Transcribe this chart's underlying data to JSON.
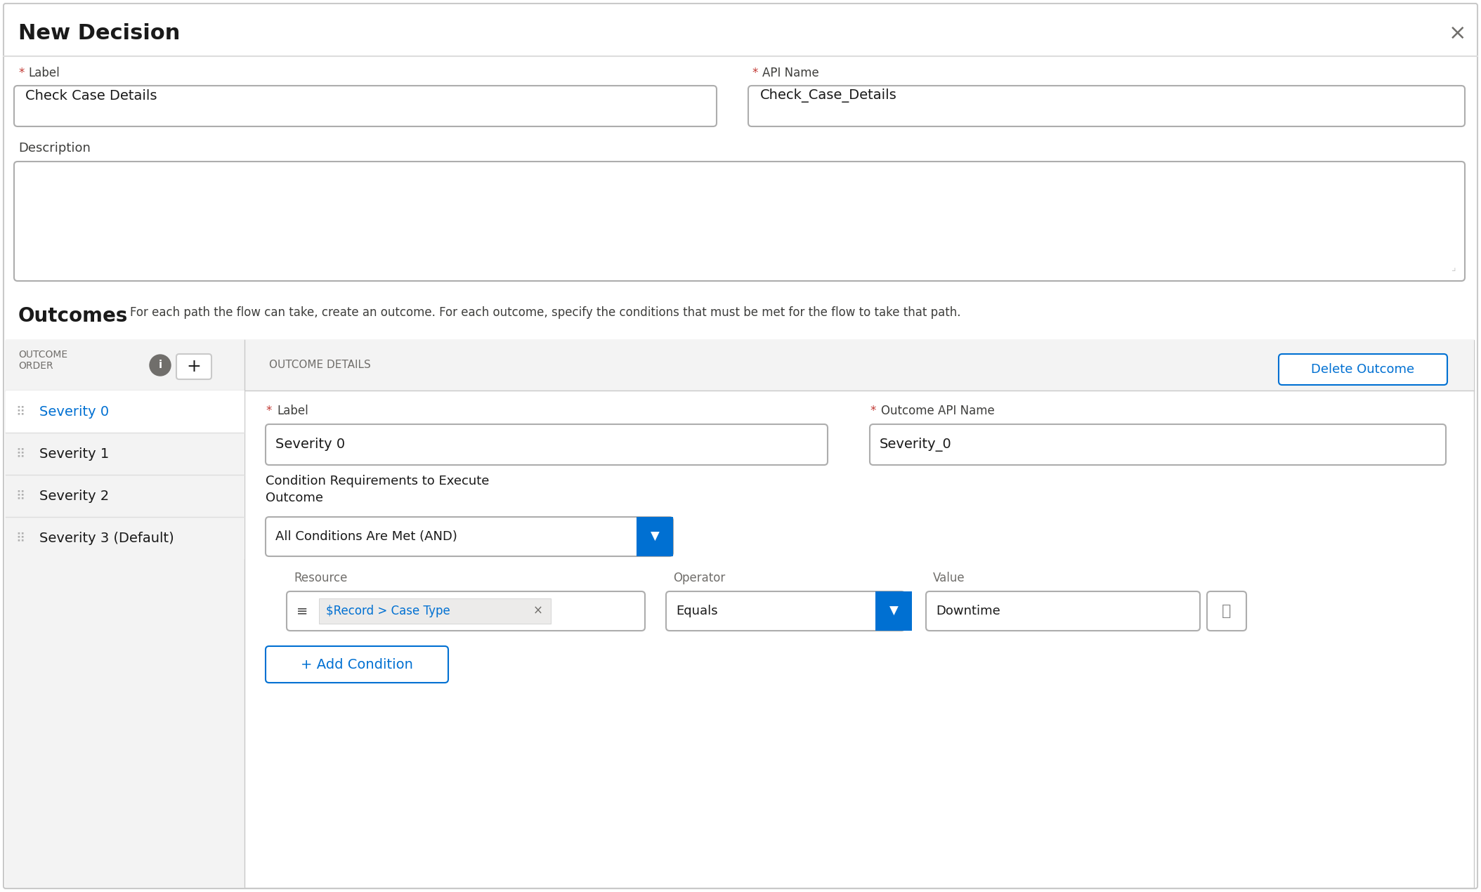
{
  "title": "New Decision",
  "close_symbol": "×",
  "label_field_label": "* Label",
  "label_field_value": "Check Case Details",
  "api_name_label": "* API Name",
  "api_name_value": "Check_Case_Details",
  "description_label": "Description",
  "outcomes_title": "Outcomes",
  "outcomes_description": "For each path the flow can take, create an outcome. For each outcome, specify the conditions that must be met for the flow to take that path.",
  "outcome_order_label": "OUTCOME\nORDER",
  "outcome_details_label": "OUTCOME DETAILS",
  "delete_outcome_btn": "Delete Outcome",
  "outcomes": [
    "Severity 0",
    "Severity 1",
    "Severity 2",
    "Severity 3 (Default)"
  ],
  "selected_outcome": 0,
  "outcome_label_value": "Severity 0",
  "outcome_api_name_value": "Severity_0",
  "condition_req_line1": "Condition Requirements to Execute",
  "condition_req_line2": "Outcome",
  "condition_dropdown_value": "All Conditions Are Met (AND)",
  "resource_label": "Resource",
  "resource_value": "$Record > Case Type",
  "operator_label": "Operator",
  "operator_value": "Equals",
  "value_label": "Value",
  "value_value": "Downtime",
  "add_condition_btn": "+ Add Condition",
  "bg_color": "#ffffff",
  "light_gray_bg": "#f3f3f3",
  "border_color": "#c9c9c9",
  "outer_border": "#dddddd",
  "text_color": "#1a1a1a",
  "label_color": "#3e3e3c",
  "blue_text": "#0070d2",
  "red_asterisk": "#c23934",
  "input_border": "#adadad",
  "gray_text": "#706e6b",
  "divider_color": "#dddddd",
  "header_bg": "#f3f3f3",
  "selected_row_bg": "#ffffff",
  "unselected_row_bg": "#f3f3f3",
  "tag_bg": "#ecebea"
}
